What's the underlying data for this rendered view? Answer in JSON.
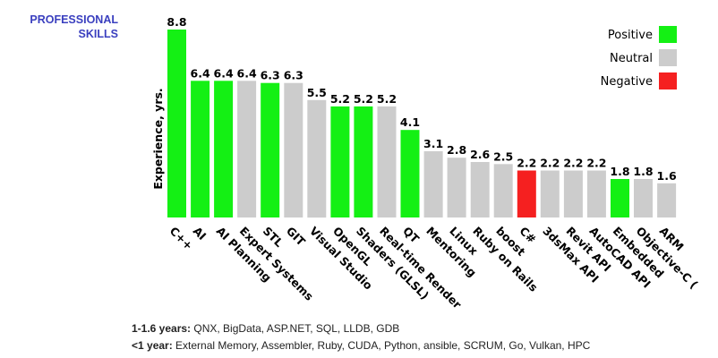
{
  "section": {
    "title_line1": "PROFESSIONAL",
    "title_line2": "SKILLS"
  },
  "colors": {
    "positive": "#14f014",
    "neutral": "#cccccc",
    "negative": "#f52020"
  },
  "chart_data": {
    "type": "bar",
    "title": "",
    "xlabel": "",
    "ylabel": "Experience, yrs.",
    "ylim": [
      0,
      8.8
    ],
    "grid": false,
    "legend_position": "top-right",
    "legend": [
      {
        "label": "Positive",
        "key": "positive"
      },
      {
        "label": "Neutral",
        "key": "neutral"
      },
      {
        "label": "Negative",
        "key": "negative"
      }
    ],
    "categories": [
      "C++",
      "AI",
      "AI Planning",
      "Expert Systems",
      "STL",
      "GIT",
      "Visual Studio",
      "OpenGL",
      "Shaders (GLSL)",
      "Real-time Render",
      "QT",
      "Mentoring",
      "Linux",
      "Ruby on Rails",
      "boost",
      "C#",
      "3dsMax API",
      "Revit API",
      "AutoCAD API",
      "Embedded",
      "Objective-C (",
      "ARM"
    ],
    "values": [
      8.8,
      6.4,
      6.4,
      6.4,
      6.3,
      6.3,
      5.5,
      5.2,
      5.2,
      5.2,
      4.1,
      3.1,
      2.8,
      2.6,
      2.5,
      2.2,
      2.2,
      2.2,
      2.2,
      1.8,
      1.8,
      1.6
    ],
    "value_labels": [
      "8.8",
      "6.4",
      "6.4",
      "6.4",
      "6.3",
      "6.3",
      "5.5",
      "5.2",
      "5.2",
      "5.2",
      "4.1",
      "3.1",
      "2.8",
      "2.6",
      "2.5",
      "2.2",
      "2.2",
      "2.2",
      "2.2",
      "1.8",
      "1.8",
      "1.6"
    ],
    "sentiment": [
      "positive",
      "positive",
      "positive",
      "neutral",
      "positive",
      "neutral",
      "neutral",
      "positive",
      "positive",
      "neutral",
      "positive",
      "neutral",
      "neutral",
      "neutral",
      "neutral",
      "negative",
      "neutral",
      "neutral",
      "neutral",
      "positive",
      "neutral",
      "neutral"
    ]
  },
  "footer": {
    "line1_label": "1-1.6 years:",
    "line1_text": " QNX, BigData, ASP.NET, SQL, LLDB, GDB",
    "line2_label": "<1 year:",
    "line2_text": " External Memory, Assembler, Ruby, CUDA, Python, ansible, SCRUM, Go, Vulkan, HPC"
  }
}
